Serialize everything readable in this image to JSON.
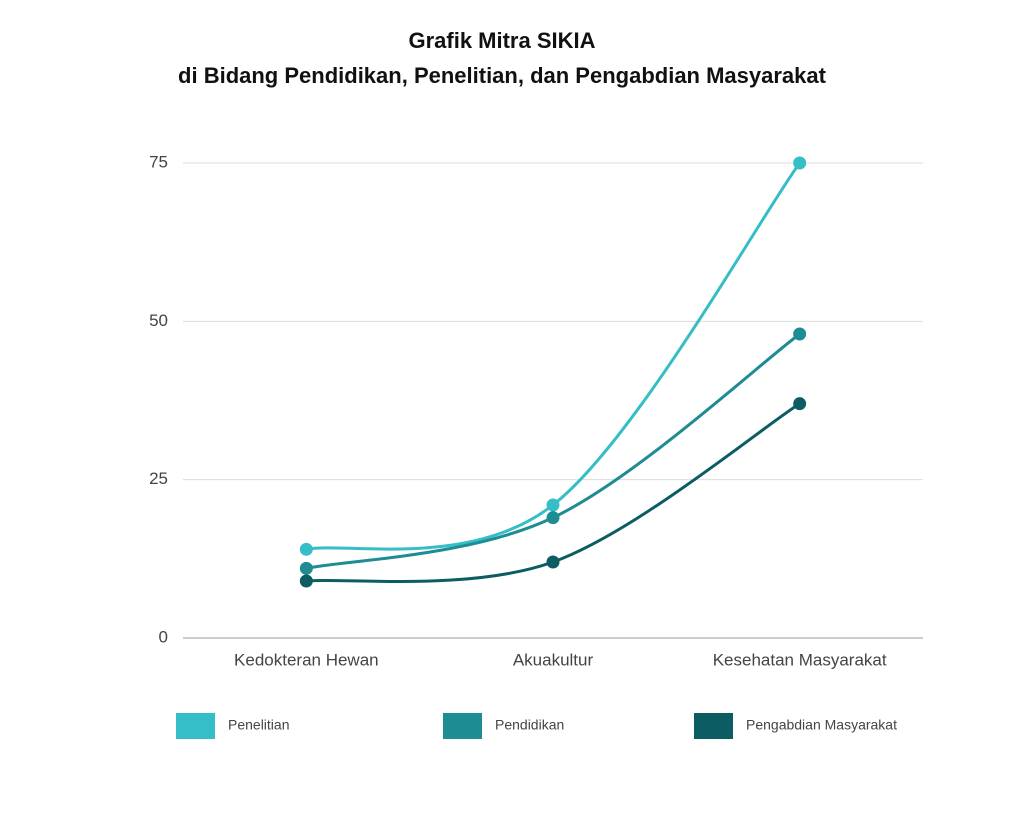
{
  "chart_data": {
    "type": "line",
    "title": [
      "Grafik Mitra SIKIA",
      "di Bidang Pendidikan, Penelitian, dan Pengabdian Masyarakat"
    ],
    "categories": [
      "Kedokteran Hewan",
      "Akuakultur",
      "Kesehatan Masyarakat"
    ],
    "series": [
      {
        "name": "Penelitian",
        "color": "#35bec6",
        "values": [
          14,
          21,
          75
        ]
      },
      {
        "name": "Pendidikan",
        "color": "#1e8c93",
        "values": [
          11,
          19,
          48
        ]
      },
      {
        "name": "Pengabdian Masyarakat",
        "color": "#0b5d63",
        "values": [
          9,
          12,
          37
        ]
      }
    ],
    "ylim": [
      0,
      75
    ],
    "yticks": [
      0,
      25,
      50,
      75
    ],
    "grid": true,
    "smooth": true,
    "legend": "bottom"
  }
}
